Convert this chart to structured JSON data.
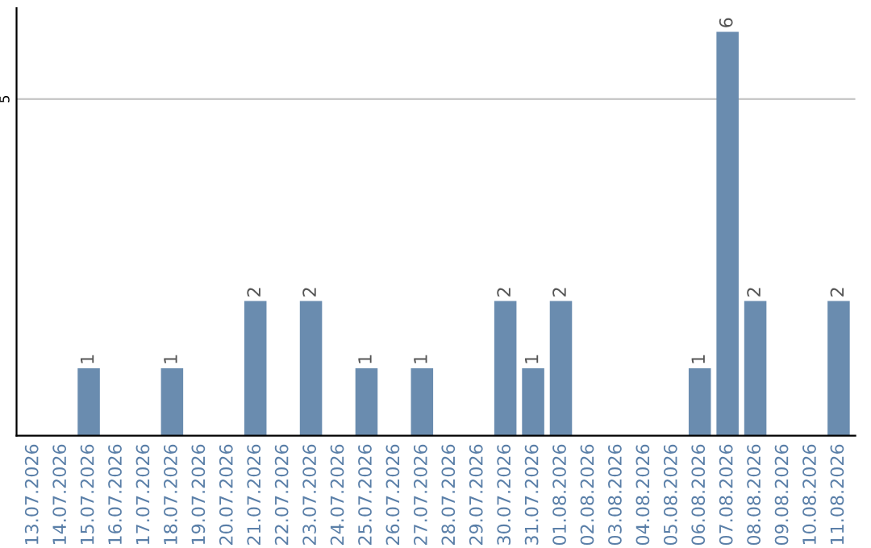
{
  "chart_data": {
    "type": "bar",
    "categories": [
      "13.07.2026",
      "14.07.2026",
      "15.07.2026",
      "16.07.2026",
      "17.07.2026",
      "18.07.2026",
      "19.07.2026",
      "20.07.2026",
      "21.07.2026",
      "22.07.2026",
      "23.07.2026",
      "24.07.2026",
      "25.07.2026",
      "26.07.2026",
      "27.07.2026",
      "28.07.2026",
      "29.07.2026",
      "30.07.2026",
      "31.07.2026",
      "01.08.2026",
      "02.08.2026",
      "03.08.2026",
      "04.08.2026",
      "05.08.2026",
      "06.08.2026",
      "07.08.2026",
      "08.08.2026",
      "09.08.2026",
      "10.08.2026",
      "11.08.2026"
    ],
    "values": [
      0,
      0,
      1,
      0,
      0,
      1,
      0,
      0,
      2,
      0,
      2,
      0,
      1,
      0,
      1,
      0,
      0,
      2,
      1,
      2,
      0,
      0,
      0,
      0,
      1,
      6,
      2,
      0,
      0,
      2
    ],
    "value_labels": [
      null,
      null,
      "1",
      null,
      null,
      "1",
      null,
      null,
      "2",
      null,
      "2",
      null,
      "1",
      null,
      "1",
      null,
      null,
      "2",
      "1",
      "2",
      null,
      null,
      null,
      null,
      "1",
      "6",
      "2",
      null,
      null,
      "2"
    ],
    "color": "#6a8caf",
    "ylim": [
      0,
      6.35
    ],
    "yticks": [
      5
    ],
    "grid": "y"
  }
}
